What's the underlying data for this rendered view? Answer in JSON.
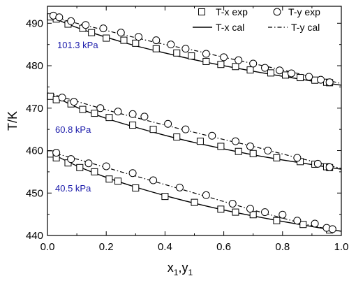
{
  "chart_data": {
    "type": "scatter",
    "xlabel": "x1,y1",
    "xlabel_main": "x",
    "xlabel_sub1": "1",
    "xlabel_sep": ",y",
    "xlabel_sub2": "1",
    "ylabel": "T/K",
    "xlim": [
      0.0,
      1.0
    ],
    "ylim": [
      440,
      494
    ],
    "x_ticks": [
      "0.0",
      "0.2",
      "0.4",
      "0.6",
      "0.8",
      "1.0"
    ],
    "y_ticks": [
      "440",
      "450",
      "460",
      "470",
      "480",
      "490"
    ],
    "grid": false,
    "legend_position": "top-right",
    "legend": {
      "tx_exp": "T-x exp",
      "ty_exp": "T-y exp",
      "tx_cal": "T-x cal",
      "ty_cal": "T-y cal"
    },
    "annotations": {
      "p1": "101.3 kPa",
      "p2": "60.8 kPa",
      "p3": "40.5 kPa",
      "color": "#1a1aaa"
    },
    "series": [
      {
        "name": "T-x exp",
        "pressure": "101.3 kPa",
        "marker": "square",
        "x": [
          0.01,
          0.03,
          0.07,
          0.12,
          0.15,
          0.2,
          0.26,
          0.3,
          0.37,
          0.44,
          0.49,
          0.54,
          0.59,
          0.64,
          0.69,
          0.76,
          0.81,
          0.86,
          0.91,
          0.95,
          0.96
        ],
        "y": [
          491.5,
          491.0,
          489.8,
          488.8,
          487.8,
          486.5,
          486.0,
          485.3,
          484.0,
          483.0,
          482.3,
          481.0,
          480.3,
          479.8,
          479.0,
          478.3,
          477.8,
          477.2,
          476.6,
          476.1,
          476.0
        ]
      },
      {
        "name": "T-y exp",
        "pressure": "101.3 kPa",
        "marker": "circle",
        "x": [
          0.02,
          0.04,
          0.08,
          0.13,
          0.19,
          0.25,
          0.31,
          0.37,
          0.42,
          0.47,
          0.54,
          0.6,
          0.65,
          0.7,
          0.74,
          0.79,
          0.83,
          0.89,
          0.93,
          0.96
        ],
        "y": [
          491.8,
          491.4,
          490.5,
          489.6,
          488.8,
          487.8,
          486.8,
          486.0,
          485.0,
          484.0,
          482.8,
          482.0,
          481.3,
          480.5,
          479.5,
          478.9,
          478.2,
          477.4,
          476.7,
          476.1
        ]
      },
      {
        "name": "T-x exp",
        "pressure": "60.8 kPa",
        "marker": "square",
        "x": [
          0.01,
          0.03,
          0.08,
          0.12,
          0.16,
          0.21,
          0.29,
          0.36,
          0.44,
          0.52,
          0.59,
          0.65,
          0.7,
          0.78,
          0.86,
          0.91,
          0.95,
          0.96
        ],
        "y": [
          472.8,
          472.0,
          471.0,
          469.7,
          468.8,
          467.8,
          466.0,
          465.0,
          463.2,
          462.2,
          461.0,
          459.8,
          459.3,
          458.3,
          457.4,
          456.8,
          456.2,
          456.0
        ]
      },
      {
        "name": "T-y exp",
        "pressure": "60.8 kPa",
        "marker": "circle",
        "x": [
          0.05,
          0.09,
          0.18,
          0.24,
          0.29,
          0.33,
          0.41,
          0.47,
          0.56,
          0.64,
          0.69,
          0.75,
          0.85,
          0.92,
          0.96
        ],
        "y": [
          472.5,
          471.5,
          470.0,
          469.2,
          468.6,
          468.0,
          466.3,
          465.0,
          463.5,
          462.2,
          461.0,
          460.0,
          458.3,
          456.9,
          456.1
        ]
      },
      {
        "name": "T-x exp",
        "pressure": "40.5 kPa",
        "marker": "square",
        "x": [
          0.01,
          0.03,
          0.07,
          0.11,
          0.16,
          0.21,
          0.24,
          0.3,
          0.4,
          0.5,
          0.59,
          0.64,
          0.7,
          0.78,
          0.87,
          0.96
        ],
        "y": [
          459.2,
          458.3,
          457.1,
          456.0,
          455.0,
          453.3,
          452.8,
          451.2,
          449.2,
          447.8,
          446.2,
          445.5,
          444.9,
          443.5,
          442.6,
          441.3
        ]
      },
      {
        "name": "T-y exp",
        "pressure": "40.5 kPa",
        "marker": "circle",
        "x": [
          0.03,
          0.08,
          0.14,
          0.2,
          0.29,
          0.36,
          0.45,
          0.54,
          0.63,
          0.69,
          0.74,
          0.8,
          0.85,
          0.91,
          0.95,
          0.97
        ],
        "y": [
          459.5,
          458.0,
          457.0,
          456.3,
          454.7,
          453.0,
          451.3,
          449.5,
          447.5,
          446.3,
          445.5,
          444.9,
          443.5,
          442.8,
          441.8,
          441.5
        ]
      },
      {
        "name": "T-x cal",
        "pressure": "101.3 kPa",
        "style": "solid",
        "x": [
          0.0,
          0.1,
          0.2,
          0.3,
          0.4,
          0.5,
          0.6,
          0.7,
          0.8,
          0.9,
          1.0
        ],
        "y": [
          491.8,
          489.0,
          486.7,
          484.7,
          483.0,
          481.4,
          480.0,
          478.7,
          477.5,
          476.4,
          475.4
        ]
      },
      {
        "name": "T-y cal",
        "pressure": "101.3 kPa",
        "style": "dashdot",
        "x": [
          0.0,
          0.1,
          0.2,
          0.3,
          0.4,
          0.5,
          0.6,
          0.7,
          0.8,
          0.9,
          1.0
        ],
        "y": [
          491.8,
          490.0,
          488.3,
          486.6,
          485.0,
          483.6,
          482.0,
          480.5,
          479.0,
          477.4,
          475.8
        ]
      },
      {
        "name": "T-x cal",
        "pressure": "60.8 kPa",
        "style": "solid",
        "x": [
          0.0,
          0.1,
          0.2,
          0.3,
          0.4,
          0.5,
          0.6,
          0.7,
          0.8,
          0.9,
          1.0
        ],
        "y": [
          473.6,
          470.2,
          467.6,
          465.5,
          463.6,
          461.9,
          460.4,
          459.0,
          457.8,
          456.7,
          455.6
        ]
      },
      {
        "name": "T-y cal",
        "pressure": "60.8 kPa",
        "style": "dashdot",
        "x": [
          0.0,
          0.1,
          0.2,
          0.3,
          0.4,
          0.5,
          0.6,
          0.7,
          0.8,
          0.9,
          1.0
        ],
        "y": [
          473.6,
          471.6,
          469.6,
          467.8,
          466.0,
          464.3,
          462.6,
          461.0,
          459.2,
          457.5,
          455.8
        ]
      },
      {
        "name": "T-x cal",
        "pressure": "40.5 kPa",
        "style": "solid",
        "x": [
          0.0,
          0.1,
          0.2,
          0.3,
          0.4,
          0.5,
          0.6,
          0.7,
          0.8,
          0.9,
          1.0
        ],
        "y": [
          459.8,
          456.4,
          453.7,
          451.4,
          449.4,
          447.6,
          446.0,
          444.6,
          443.3,
          442.1,
          441.0
        ]
      },
      {
        "name": "T-y cal",
        "pressure": "40.5 kPa",
        "style": "dashdot",
        "x": [
          0.0,
          0.1,
          0.2,
          0.3,
          0.4,
          0.5,
          0.6,
          0.7,
          0.8,
          0.9,
          1.0
        ],
        "y": [
          459.8,
          458.0,
          456.0,
          454.0,
          452.0,
          450.0,
          448.0,
          446.0,
          444.1,
          442.3,
          441.0
        ]
      }
    ]
  }
}
